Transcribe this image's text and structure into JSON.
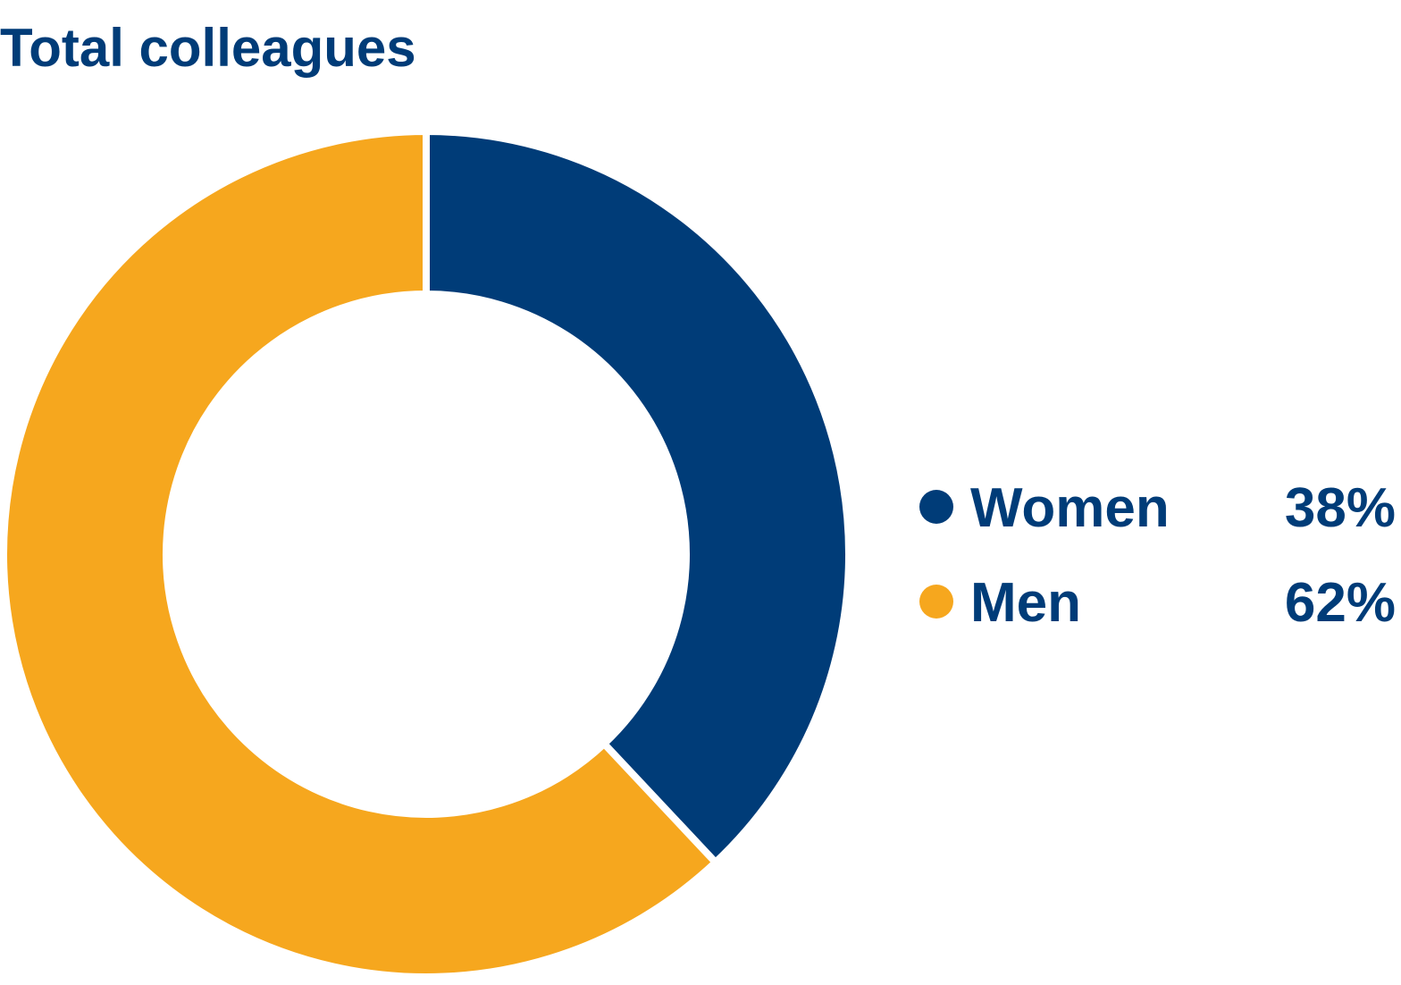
{
  "chart_data": {
    "type": "donut",
    "title": "Total colleagues",
    "categories": [
      "Women",
      "Men"
    ],
    "values": [
      38,
      62
    ],
    "value_labels": [
      "38%",
      "62%"
    ],
    "colors": [
      "#003c78",
      "#f6a71e"
    ],
    "legend": "right"
  }
}
